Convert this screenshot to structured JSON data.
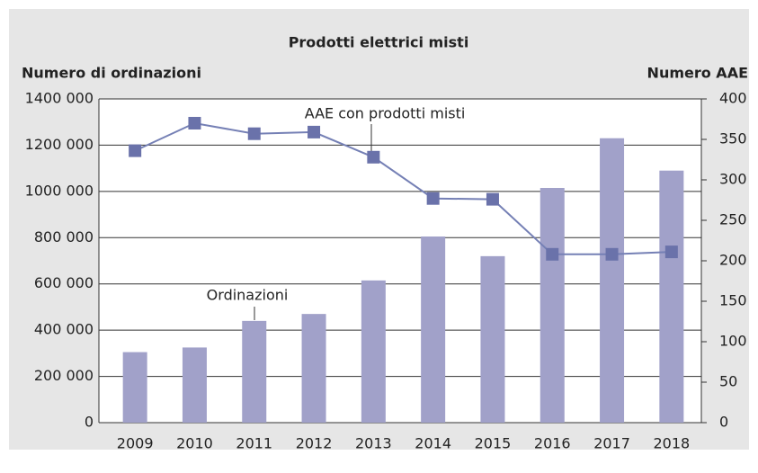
{
  "chart_data": {
    "type": "bar_line",
    "title": "Prodotti elettrici misti",
    "y_label": "Numero di ordinazioni",
    "y2_label": "Numero AAE",
    "annotations": [
      "AAE con prodotti misti",
      "Ordinazioni"
    ],
    "categories": [
      "2009",
      "2010",
      "2011",
      "2012",
      "2013",
      "2014",
      "2015",
      "2016",
      "2017",
      "2018"
    ],
    "series": [
      {
        "name": "Ordinazioni",
        "type": "bar",
        "color": "#a1a1c9",
        "values": [
          305000,
          325000,
          440000,
          470000,
          615000,
          805000,
          720000,
          1015000,
          1230000,
          1090000
        ]
      },
      {
        "name": "AAE con prodotti misti",
        "type": "line",
        "axis": "y2",
        "color": "#7580b5",
        "marker_color": "#6a72aa",
        "values": [
          336,
          370,
          357,
          359,
          328,
          277,
          276,
          208,
          208,
          211
        ]
      }
    ],
    "ylim": [
      0,
      1400000
    ],
    "yticks": [
      0,
      {
        "value": 200000,
        "label": "200 000"
      },
      {
        "value": 400000,
        "label": "400 000"
      },
      {
        "value": 600000,
        "label": "600 000"
      },
      {
        "value": 800000,
        "label": "800 000"
      },
      {
        "value": 1000000,
        "label": "1000 000"
      },
      {
        "value": 1200000,
        "label": "1200 000"
      },
      {
        "value": 1400000,
        "label": "1400 000"
      }
    ],
    "y2lim": [
      0,
      400
    ],
    "y2ticks": [
      0,
      50,
      100,
      150,
      200,
      250,
      300,
      350,
      400
    ],
    "grid": true
  }
}
